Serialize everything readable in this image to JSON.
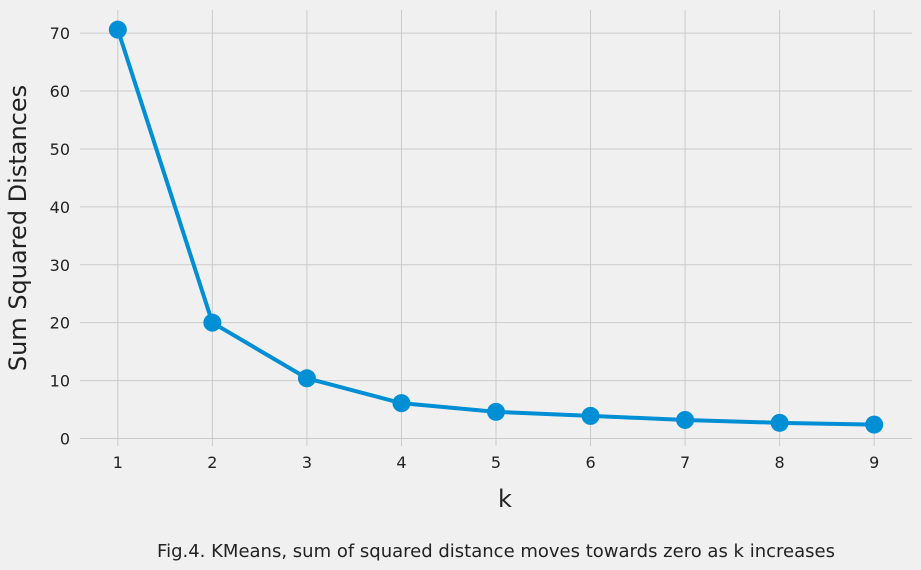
{
  "chart_data": {
    "type": "line",
    "x": [
      1,
      2,
      3,
      4,
      5,
      6,
      7,
      8,
      9
    ],
    "series": [
      {
        "values": [
          70.6,
          20.0,
          10.4,
          6.1,
          4.6,
          3.9,
          3.2,
          2.7,
          2.4
        ],
        "color": "#008fd5"
      }
    ],
    "xlabel": "k",
    "ylabel": "Sum Squared Distances",
    "xlim": [
      0.6,
      9.4
    ],
    "ylim": [
      -1.3,
      74
    ],
    "xticks": [
      1,
      2,
      3,
      4,
      5,
      6,
      7,
      8,
      9
    ],
    "yticks": [
      0,
      10,
      20,
      30,
      40,
      50,
      60,
      70
    ],
    "grid": true,
    "markers": true
  },
  "caption": "Fig.4. KMeans, sum of squared distance moves towards zero as k increases",
  "style": {
    "background": "#f0f0f0",
    "grid_color": "#cbcbcb",
    "text_color": "#222222"
  }
}
